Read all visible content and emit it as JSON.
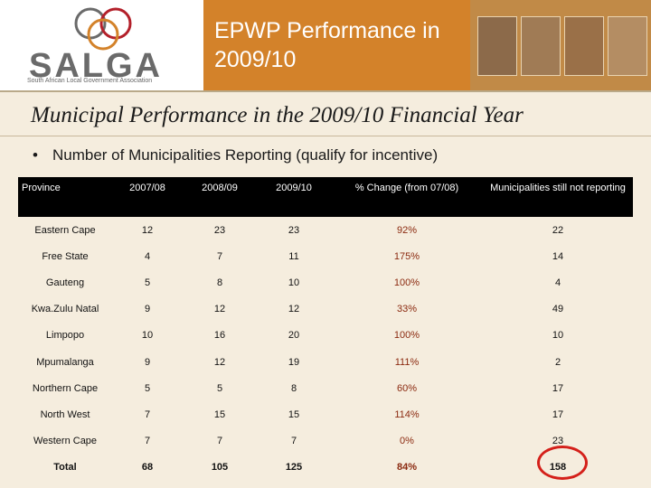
{
  "header": {
    "logo_text": "SALGA",
    "logo_tagline": "South African Local Government Association",
    "title": "EPWP Performance in 2009/10"
  },
  "subtitle": "Municipal Performance in the 2009/10 Financial Year",
  "bullet": "Number of Municipalities Reporting (qualify for incentive)",
  "table": {
    "columns": [
      "Province",
      "2007/08",
      "2008/09",
      "2009/10",
      "% Change (from 07/08)",
      "Municipalities still not reporting"
    ],
    "rows": [
      [
        "Eastern Cape",
        "12",
        "23",
        "23",
        "92%",
        "22"
      ],
      [
        "Free State",
        "4",
        "7",
        "11",
        "175%",
        "14"
      ],
      [
        "Gauteng",
        "5",
        "8",
        "10",
        "100%",
        "4"
      ],
      [
        "Kwa.Zulu Natal",
        "9",
        "12",
        "12",
        "33%",
        "49"
      ],
      [
        "Limpopo",
        "10",
        "16",
        "20",
        "100%",
        "10"
      ],
      [
        "Mpumalanga",
        "9",
        "12",
        "19",
        "111%",
        "2"
      ],
      [
        "Northern Cape",
        "5",
        "5",
        "8",
        "60%",
        "17"
      ],
      [
        "North West",
        "7",
        "15",
        "15",
        "114%",
        "17"
      ],
      [
        "Western Cape",
        "7",
        "7",
        "7",
        "0%",
        "23"
      ]
    ],
    "total": [
      "Total",
      "68",
      "105",
      "125",
      "84%",
      "158"
    ]
  },
  "colors": {
    "title_band": "#d3822a",
    "background": "#f5edde",
    "header_row": "#000000",
    "percent_text": "#8b2a10",
    "highlight_circle": "#d4201a"
  }
}
